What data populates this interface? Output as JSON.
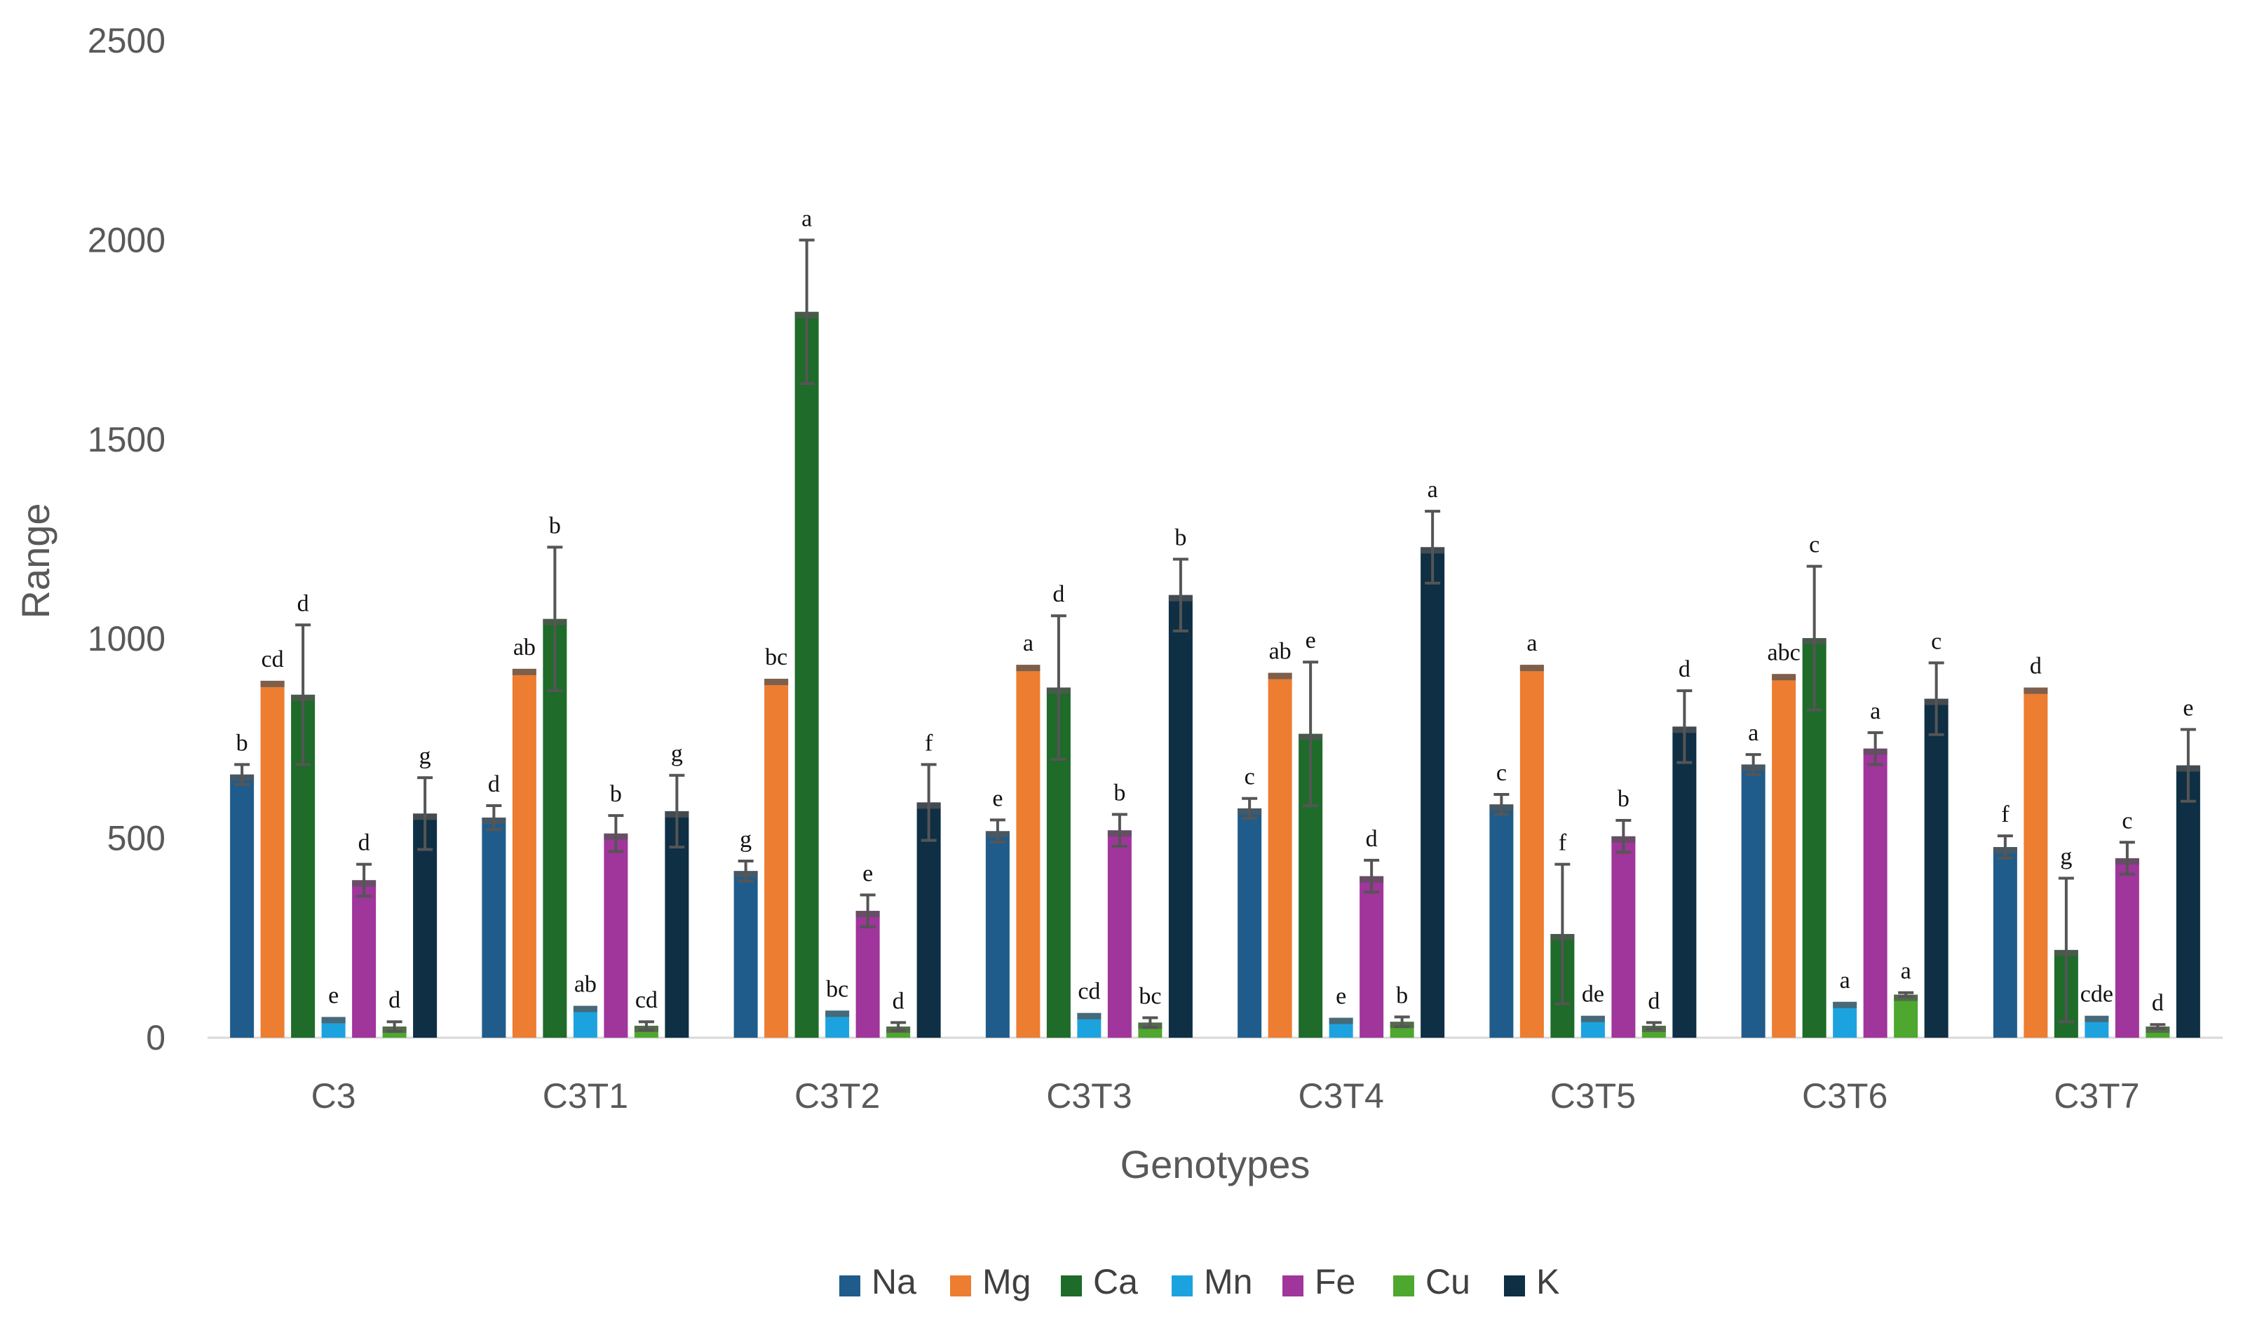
{
  "chart_data": {
    "type": "bar",
    "title": "",
    "xlabel": "Genotypes",
    "ylabel": "Range",
    "ylim": [
      0,
      2500
    ],
    "yticks": [
      0,
      500,
      1000,
      1500,
      2000,
      2500
    ],
    "grid": false,
    "legend_position": "bottom",
    "categories": [
      "C3",
      "C3T1",
      "C3T2",
      "C3T3",
      "C3T4",
      "C3T5",
      "C3T6",
      "C3T7"
    ],
    "series": [
      {
        "name": "Na",
        "color": "#1f5c8b",
        "values": [
          660,
          552,
          418,
          518,
          575,
          585,
          685,
          478
        ],
        "errors": [
          25,
          30,
          25,
          28,
          25,
          25,
          25,
          28
        ],
        "labels": [
          "b",
          "d",
          "g",
          "e",
          "c",
          "c",
          "a",
          "f"
        ]
      },
      {
        "name": "Mg",
        "color": "#ed7d31",
        "values": [
          895,
          925,
          900,
          935,
          915,
          935,
          912,
          878
        ],
        "errors": [
          0,
          0,
          0,
          0,
          0,
          0,
          0,
          0
        ],
        "labels": [
          "cd",
          "ab",
          "bc",
          "a",
          "ab",
          "a",
          "abc",
          "d"
        ]
      },
      {
        "name": "Ca",
        "color": "#1e6b2a",
        "values": [
          860,
          1050,
          1820,
          878,
          762,
          260,
          1002,
          220
        ],
        "errors": [
          175,
          180,
          180,
          180,
          180,
          175,
          180,
          180
        ],
        "labels": [
          "d",
          "b",
          "a",
          "d",
          "e",
          "f",
          "c",
          "g"
        ]
      },
      {
        "name": "Mn",
        "color": "#1ca3df",
        "values": [
          52,
          80,
          68,
          62,
          50,
          55,
          90,
          55
        ],
        "errors": [
          0,
          0,
          0,
          0,
          0,
          0,
          0,
          0
        ],
        "labels": [
          "e",
          "ab",
          "bc",
          "cd",
          "e",
          "de",
          "a",
          "cde"
        ]
      },
      {
        "name": "Fe",
        "color": "#a0359b",
        "values": [
          395,
          512,
          318,
          520,
          405,
          505,
          725,
          450
        ],
        "errors": [
          40,
          45,
          40,
          40,
          40,
          40,
          40,
          40
        ],
        "labels": [
          "d",
          "b",
          "e",
          "b",
          "d",
          "b",
          "a",
          "c"
        ]
      },
      {
        "name": "Cu",
        "color": "#4ea72e",
        "values": [
          28,
          30,
          28,
          38,
          40,
          30,
          108,
          28
        ],
        "errors": [
          12,
          10,
          10,
          12,
          12,
          8,
          5,
          5
        ],
        "labels": [
          "d",
          "cd",
          "d",
          "bc",
          "b",
          "d",
          "a",
          "d"
        ]
      },
      {
        "name": "K",
        "color": "#0e2f44",
        "values": [
          562,
          568,
          590,
          1110,
          1230,
          780,
          850,
          683
        ],
        "errors": [
          90,
          90,
          95,
          90,
          90,
          90,
          90,
          90
        ],
        "labels": [
          "g",
          "g",
          "f",
          "b",
          "a",
          "d",
          "c",
          "e"
        ]
      }
    ]
  }
}
